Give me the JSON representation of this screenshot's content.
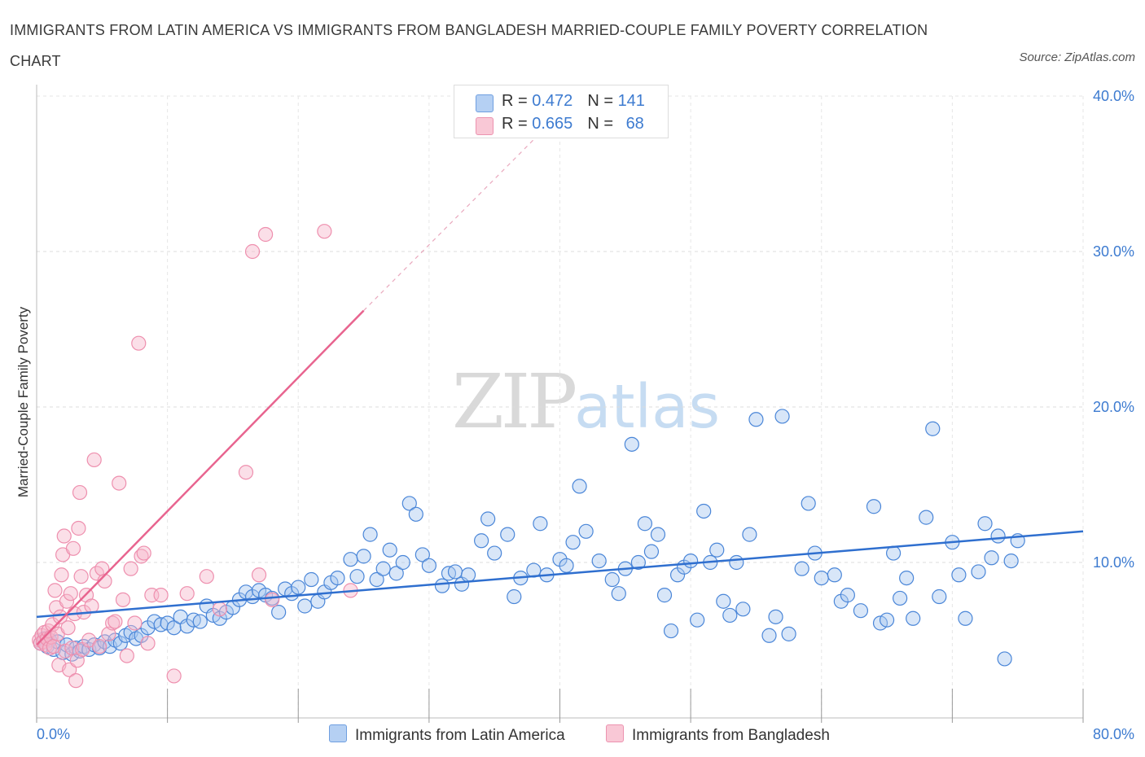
{
  "title": "IMMIGRANTS FROM LATIN AMERICA VS IMMIGRANTS FROM BANGLADESH MARRIED-COUPLE FAMILY POVERTY CORRELATION CHART",
  "source": "Source: ZipAtlas.com",
  "watermark": {
    "zip": "ZIP",
    "atlas": "atlas"
  },
  "legend": {
    "rows": [
      {
        "r_label": "R = ",
        "r_value": "0.472",
        "n_label": "N = ",
        "n_value": "141",
        "color": "#a8c8f0"
      },
      {
        "r_label": "R = ",
        "r_value": "0.665",
        "n_label": "N = ",
        "n_value": "68",
        "color": "#f6b8cb"
      }
    ]
  },
  "bottom_legend": {
    "series1": "Immigrants from Latin America",
    "series2": "Immigrants from Bangladesh"
  },
  "chart_data": {
    "type": "scatter",
    "title": "IMMIGRANTS FROM LATIN AMERICA VS IMMIGRANTS FROM BANGLADESH MARRIED-COUPLE FAMILY POVERTY CORRELATION CHART",
    "xlabel": "",
    "ylabel": "Married-Couple Family Poverty",
    "xlim": [
      0,
      80
    ],
    "ylim": [
      0,
      40
    ],
    "x_tick_labels": [
      "0.0%",
      "80.0%"
    ],
    "y_tick_labels": [
      "10.0%",
      "20.0%",
      "30.0%",
      "40.0%"
    ],
    "y_ticks": [
      10,
      20,
      30,
      40
    ],
    "grid": true,
    "legend_position": "top-center",
    "series": [
      {
        "name": "Immigrants from Latin America",
        "color": "#4a86d8",
        "fill": "#a8c8f0",
        "R": 0.472,
        "N": 141,
        "trend": {
          "x": [
            0,
            80
          ],
          "y": [
            6.5,
            12.0
          ]
        },
        "points": [
          [
            0.3,
            4.8
          ],
          [
            0.6,
            5.1
          ],
          [
            0.8,
            4.6
          ],
          [
            1.0,
            5.0
          ],
          [
            1.3,
            4.4
          ],
          [
            1.6,
            4.9
          ],
          [
            2.0,
            4.2
          ],
          [
            2.3,
            4.7
          ],
          [
            2.7,
            4.1
          ],
          [
            3.0,
            4.5
          ],
          [
            3.3,
            4.3
          ],
          [
            3.6,
            4.6
          ],
          [
            4.0,
            4.4
          ],
          [
            4.4,
            4.7
          ],
          [
            4.8,
            4.5
          ],
          [
            5.2,
            4.9
          ],
          [
            5.6,
            4.6
          ],
          [
            6.0,
            5.0
          ],
          [
            6.4,
            4.8
          ],
          [
            6.8,
            5.3
          ],
          [
            7.2,
            5.5
          ],
          [
            7.6,
            5.1
          ],
          [
            8.0,
            5.3
          ],
          [
            8.5,
            5.8
          ],
          [
            9.0,
            6.2
          ],
          [
            9.5,
            6.0
          ],
          [
            10.0,
            6.1
          ],
          [
            10.5,
            5.8
          ],
          [
            11.0,
            6.5
          ],
          [
            11.5,
            5.9
          ],
          [
            12.0,
            6.3
          ],
          [
            12.5,
            6.2
          ],
          [
            13.0,
            7.2
          ],
          [
            13.5,
            6.6
          ],
          [
            14.0,
            6.4
          ],
          [
            14.5,
            6.8
          ],
          [
            15.0,
            7.1
          ],
          [
            15.5,
            7.6
          ],
          [
            16.0,
            8.1
          ],
          [
            16.5,
            7.8
          ],
          [
            17.0,
            8.2
          ],
          [
            17.5,
            7.9
          ],
          [
            18.0,
            7.7
          ],
          [
            18.5,
            6.8
          ],
          [
            19.0,
            8.3
          ],
          [
            19.5,
            8.0
          ],
          [
            20.0,
            8.4
          ],
          [
            20.5,
            7.2
          ],
          [
            21.0,
            8.9
          ],
          [
            21.5,
            7.5
          ],
          [
            22.0,
            8.1
          ],
          [
            22.5,
            8.7
          ],
          [
            23.0,
            9.0
          ],
          [
            24.0,
            10.2
          ],
          [
            24.5,
            9.1
          ],
          [
            25.0,
            10.4
          ],
          [
            25.5,
            11.8
          ],
          [
            26.0,
            8.9
          ],
          [
            26.5,
            9.6
          ],
          [
            27.0,
            10.8
          ],
          [
            27.5,
            9.3
          ],
          [
            28.0,
            10.0
          ],
          [
            28.5,
            13.8
          ],
          [
            29.0,
            13.1
          ],
          [
            29.5,
            10.5
          ],
          [
            30.0,
            9.8
          ],
          [
            31.0,
            8.5
          ],
          [
            31.5,
            9.3
          ],
          [
            32.0,
            9.4
          ],
          [
            32.5,
            8.6
          ],
          [
            33.0,
            9.2
          ],
          [
            34.0,
            11.4
          ],
          [
            34.5,
            12.8
          ],
          [
            35.0,
            10.6
          ],
          [
            36.0,
            11.8
          ],
          [
            36.5,
            7.8
          ],
          [
            37.0,
            9.0
          ],
          [
            38.0,
            9.5
          ],
          [
            38.5,
            12.5
          ],
          [
            39.0,
            9.2
          ],
          [
            40.0,
            10.2
          ],
          [
            40.5,
            9.8
          ],
          [
            41.0,
            11.3
          ],
          [
            41.5,
            14.9
          ],
          [
            42.0,
            12.0
          ],
          [
            43.0,
            10.1
          ],
          [
            44.0,
            8.9
          ],
          [
            44.5,
            8.0
          ],
          [
            45.0,
            9.6
          ],
          [
            45.5,
            17.6
          ],
          [
            46.0,
            10.0
          ],
          [
            46.5,
            12.5
          ],
          [
            47.0,
            10.7
          ],
          [
            47.5,
            11.8
          ],
          [
            48.0,
            7.9
          ],
          [
            48.5,
            5.6
          ],
          [
            49.0,
            9.2
          ],
          [
            49.5,
            9.7
          ],
          [
            50.0,
            10.1
          ],
          [
            50.5,
            6.3
          ],
          [
            51.0,
            13.3
          ],
          [
            51.5,
            10.0
          ],
          [
            52.0,
            10.8
          ],
          [
            52.5,
            7.5
          ],
          [
            53.0,
            6.6
          ],
          [
            53.5,
            10.0
          ],
          [
            54.0,
            7.0
          ],
          [
            54.5,
            11.8
          ],
          [
            55.0,
            19.2
          ],
          [
            56.0,
            5.3
          ],
          [
            56.5,
            6.5
          ],
          [
            57.0,
            19.4
          ],
          [
            57.5,
            5.4
          ],
          [
            58.5,
            9.6
          ],
          [
            59.0,
            13.8
          ],
          [
            59.5,
            10.6
          ],
          [
            60.0,
            9.0
          ],
          [
            61.0,
            9.2
          ],
          [
            61.5,
            7.5
          ],
          [
            62.0,
            7.9
          ],
          [
            63.0,
            6.9
          ],
          [
            64.0,
            13.6
          ],
          [
            64.5,
            6.1
          ],
          [
            65.0,
            6.3
          ],
          [
            65.5,
            10.6
          ],
          [
            66.0,
            7.7
          ],
          [
            66.5,
            9.0
          ],
          [
            67.0,
            6.4
          ],
          [
            68.0,
            12.9
          ],
          [
            68.5,
            18.6
          ],
          [
            69.0,
            7.8
          ],
          [
            70.0,
            11.3
          ],
          [
            70.5,
            9.2
          ],
          [
            71.0,
            6.4
          ],
          [
            72.0,
            9.4
          ],
          [
            72.5,
            12.5
          ],
          [
            73.0,
            10.3
          ],
          [
            73.5,
            11.7
          ],
          [
            74.0,
            3.8
          ],
          [
            74.5,
            10.1
          ],
          [
            75.0,
            11.4
          ]
        ]
      },
      {
        "name": "Immigrants from Bangladesh",
        "color": "#e8648f",
        "fill": "#f6b8cb",
        "R": 0.665,
        "N": 68,
        "trend": {
          "x": [
            0,
            25
          ],
          "y": [
            4.7,
            26.2
          ]
        },
        "trend_dashed": {
          "x": [
            25,
            38
          ],
          "y": [
            26.2,
            37.2
          ]
        },
        "points": [
          [
            0.2,
            5.0
          ],
          [
            0.3,
            4.8
          ],
          [
            0.4,
            5.3
          ],
          [
            0.5,
            4.9
          ],
          [
            0.6,
            5.5
          ],
          [
            0.7,
            4.7
          ],
          [
            0.8,
            5.1
          ],
          [
            0.9,
            5.6
          ],
          [
            1.0,
            4.5
          ],
          [
            1.1,
            5.2
          ],
          [
            1.2,
            6.0
          ],
          [
            1.3,
            4.6
          ],
          [
            1.4,
            8.2
          ],
          [
            1.5,
            7.1
          ],
          [
            1.6,
            5.4
          ],
          [
            1.7,
            3.4
          ],
          [
            1.8,
            6.5
          ],
          [
            1.9,
            9.2
          ],
          [
            2.0,
            10.5
          ],
          [
            2.1,
            11.7
          ],
          [
            2.2,
            4.3
          ],
          [
            2.3,
            7.5
          ],
          [
            2.4,
            5.8
          ],
          [
            2.5,
            3.1
          ],
          [
            2.6,
            8.0
          ],
          [
            2.7,
            4.5
          ],
          [
            2.8,
            10.9
          ],
          [
            2.9,
            6.7
          ],
          [
            3.0,
            2.4
          ],
          [
            3.1,
            3.7
          ],
          [
            3.2,
            12.2
          ],
          [
            3.3,
            14.5
          ],
          [
            3.4,
            9.1
          ],
          [
            3.5,
            4.4
          ],
          [
            3.6,
            6.8
          ],
          [
            3.8,
            7.9
          ],
          [
            4.0,
            5.0
          ],
          [
            4.2,
            7.2
          ],
          [
            4.4,
            16.6
          ],
          [
            4.6,
            9.3
          ],
          [
            4.8,
            4.6
          ],
          [
            5.0,
            9.6
          ],
          [
            5.2,
            8.8
          ],
          [
            5.5,
            5.4
          ],
          [
            5.8,
            6.1
          ],
          [
            6.0,
            6.2
          ],
          [
            6.3,
            15.1
          ],
          [
            6.6,
            7.6
          ],
          [
            6.9,
            4.0
          ],
          [
            7.2,
            9.6
          ],
          [
            7.5,
            6.1
          ],
          [
            7.8,
            24.1
          ],
          [
            8.0,
            10.4
          ],
          [
            8.2,
            10.6
          ],
          [
            8.5,
            4.8
          ],
          [
            8.8,
            7.9
          ],
          [
            9.5,
            7.9
          ],
          [
            10.5,
            2.7
          ],
          [
            11.5,
            8.0
          ],
          [
            13.0,
            9.1
          ],
          [
            14.0,
            7.0
          ],
          [
            16.0,
            15.8
          ],
          [
            16.5,
            30.0
          ],
          [
            17.0,
            9.2
          ],
          [
            17.5,
            31.1
          ],
          [
            18.0,
            7.6
          ],
          [
            22.0,
            31.3
          ],
          [
            24.0,
            8.2
          ]
        ]
      }
    ]
  }
}
